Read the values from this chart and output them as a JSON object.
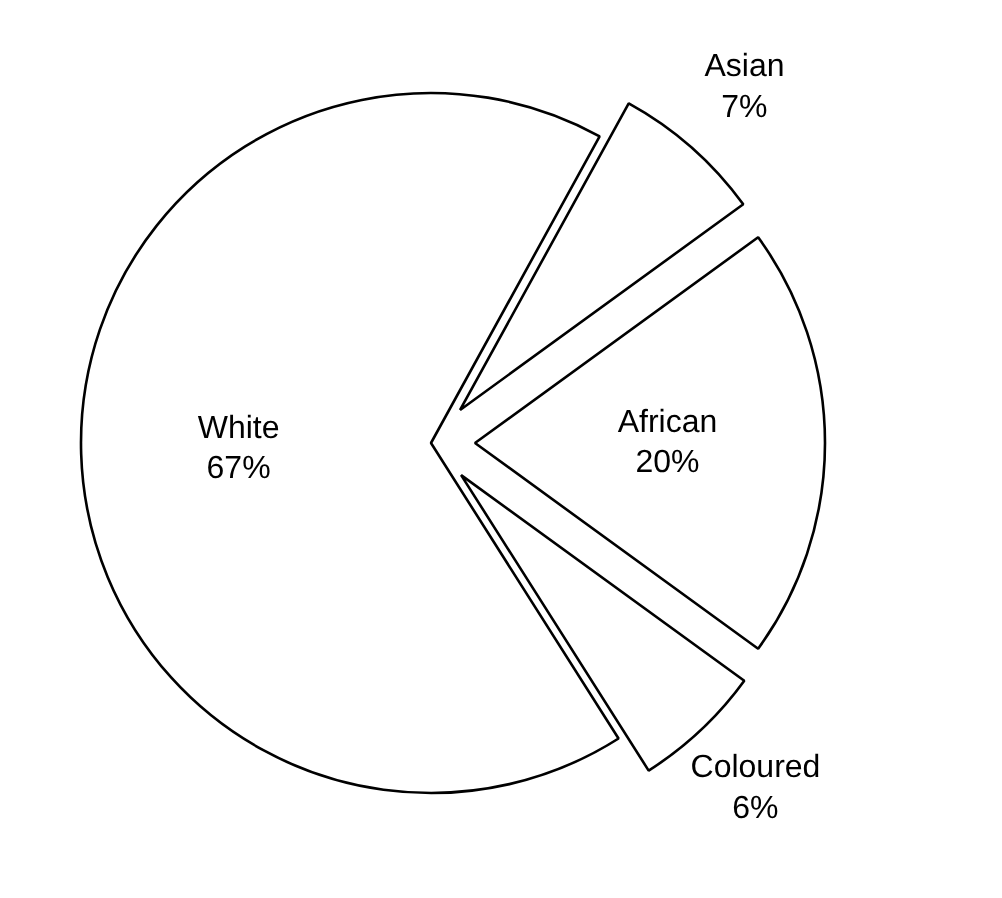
{
  "chart_data": {
    "type": "pie",
    "categories": [
      "Asian",
      "African",
      "Coloured",
      "White"
    ],
    "values": [
      7,
      20,
      6,
      67
    ],
    "value_labels": [
      "7%",
      "20%",
      "6%",
      "67%"
    ],
    "colors": [
      "#ffffff",
      "#ffffff",
      "#ffffff",
      "#ffffff"
    ]
  }
}
